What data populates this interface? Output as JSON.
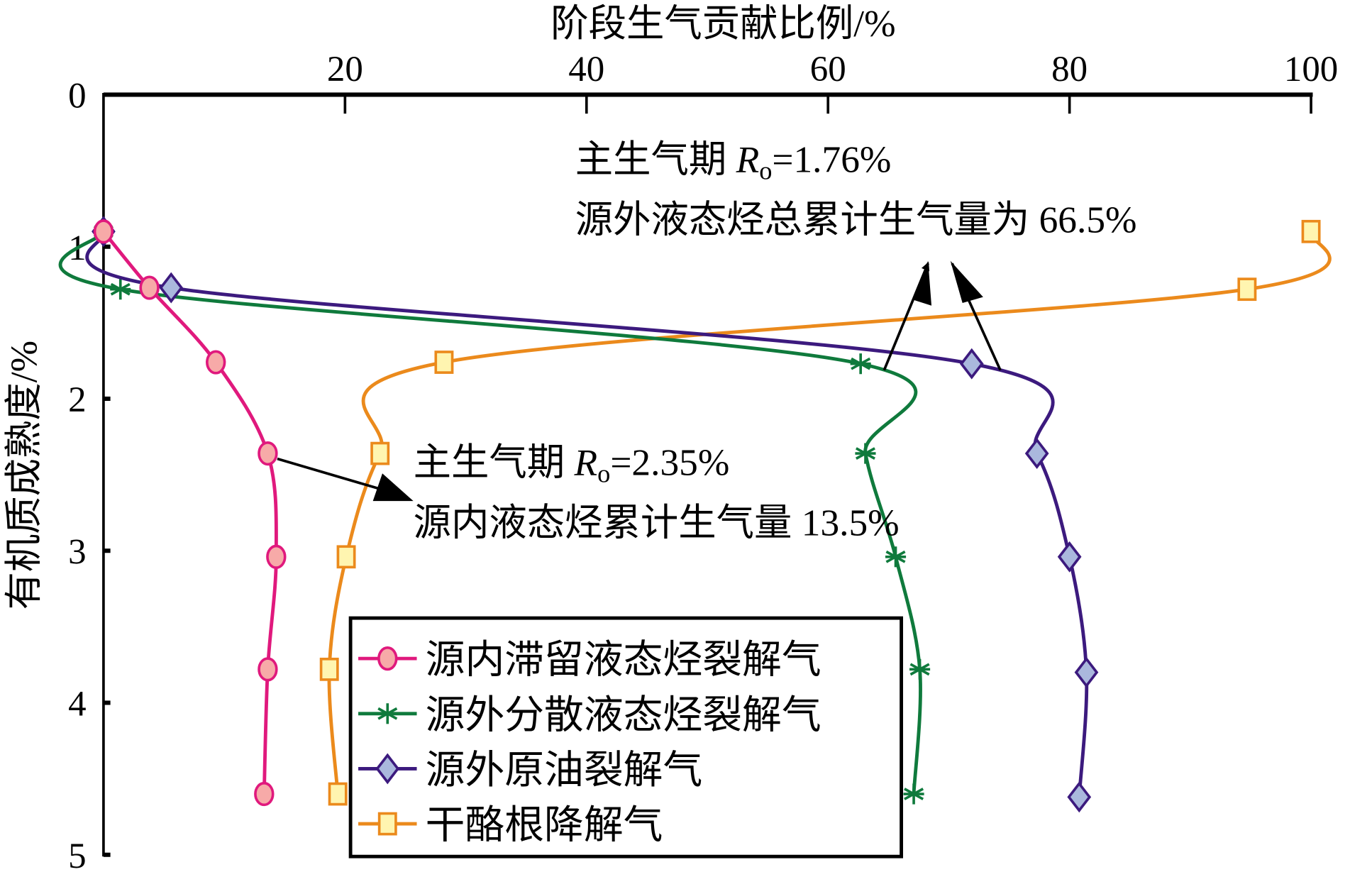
{
  "chart_data": {
    "type": "line",
    "xlabel": "阶段生气贡献比例/%",
    "ylabel": "有机质成熟度/%",
    "x_axis_position": "top",
    "y_axis_inverted": true,
    "xlim": [
      0,
      100
    ],
    "ylim": [
      0,
      5
    ],
    "xticks": [
      "0",
      "20",
      "40",
      "60",
      "80",
      "100"
    ],
    "yticks": [
      "0",
      "1",
      "2",
      "3",
      "4",
      "5"
    ],
    "grid": false,
    "legend_position": "bottom-center",
    "series": [
      {
        "name": "源内滞留液态烃裂解气",
        "color": "#e0197d",
        "marker": "circle",
        "marker_fill": "#f7aaa8",
        "x": [
          0,
          3.8,
          9.3,
          13.6,
          14.3,
          13.6,
          13.3
        ],
        "y": [
          0.9,
          1.27,
          1.76,
          2.36,
          3.04,
          3.78,
          4.6
        ]
      },
      {
        "name": "源外分散液态烃裂解气",
        "color": "#0f7a3c",
        "marker": "asterisk",
        "marker_fill": "#0f7a3c",
        "x": [
          0,
          1.4,
          62.7,
          63.1,
          65.6,
          67.6,
          67.1
        ],
        "y": [
          0.9,
          1.28,
          1.77,
          2.36,
          3.04,
          3.78,
          4.6
        ]
      },
      {
        "name": "源外原油裂解气",
        "color": "#3c1a7e",
        "marker": "diamond",
        "marker_fill": "#aab8dd",
        "x": [
          0,
          5.6,
          71.9,
          77.3,
          80.0,
          81.4,
          80.8
        ],
        "y": [
          0.9,
          1.27,
          1.77,
          2.36,
          3.04,
          3.8,
          4.62
        ]
      },
      {
        "name": "干酪根降解气",
        "color": "#eb8a1c",
        "marker": "square",
        "marker_fill": "#fff5b0",
        "x": [
          100,
          94.7,
          28.2,
          22.9,
          20.1,
          18.7,
          19.4
        ],
        "y": [
          0.9,
          1.28,
          1.76,
          2.36,
          3.04,
          3.78,
          4.6
        ]
      }
    ],
    "annotations": [
      {
        "line1_prefix": "主生气期 ",
        "italic": "R",
        "sub": "o",
        "line1_suffix": "=1.76%",
        "line2": "源外液态烃总累计生气量为 66.5%"
      },
      {
        "line1_prefix": "主生气期 ",
        "italic": "R",
        "sub": "o",
        "line1_suffix": "=2.35%",
        "line2": "源内液态烃累计生气量 13.5%"
      }
    ]
  }
}
